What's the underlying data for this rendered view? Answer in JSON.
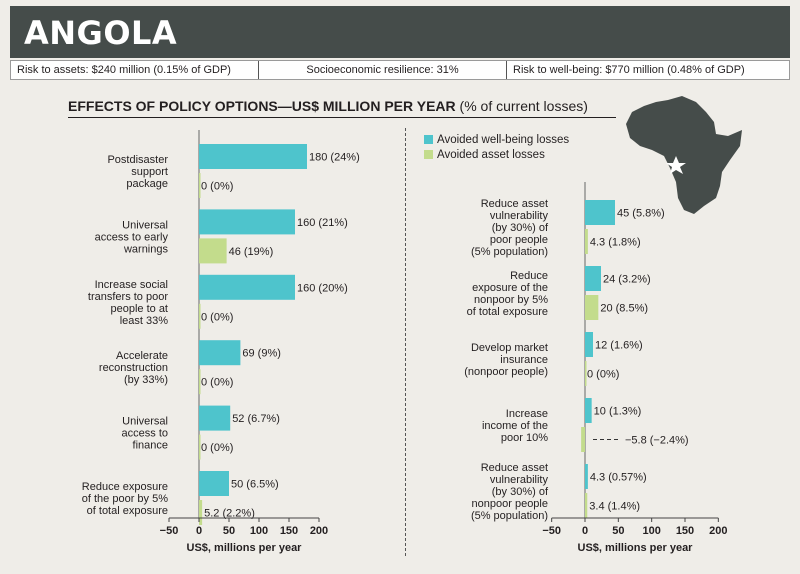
{
  "header": {
    "country": "ANGOLA",
    "risk_to_assets": "Risk to assets: $240 million (0.15% of GDP)",
    "resilience": "Socioeconomic resilience: 31%",
    "risk_to_wellbeing": "Risk to well-being: $770 million (0.48% of GDP)"
  },
  "section": {
    "title_bold": "EFFECTS OF POLICY OPTIONS—US$ MILLION PER YEAR",
    "title_suffix": " (% of current losses)"
  },
  "legend": {
    "wellbeing": "Avoided well-being losses",
    "asset": "Avoided asset losses"
  },
  "colors": {
    "wellbeing": "#4ec4cc",
    "asset": "#c3dc8c",
    "header_bg": "#454c4a",
    "map": "#454c4a"
  },
  "chart_data": [
    {
      "type": "bar",
      "orientation": "horizontal",
      "xlabel": "US$, millions per year",
      "xlim": [
        -50,
        200
      ],
      "xticks": [
        -50,
        0,
        50,
        100,
        150,
        200
      ],
      "categories": [
        [
          "Postdisaster",
          "support",
          "package"
        ],
        [
          "Universal",
          "access to early",
          "warnings"
        ],
        [
          "Increase social",
          "transfers to poor",
          "people to at",
          "least 33%"
        ],
        [
          "Accelerate",
          "reconstruction",
          "(by 33%)"
        ],
        [
          "Universal",
          "access to",
          "finance"
        ],
        [
          "Reduce exposure",
          "of the poor by 5%",
          "of total exposure"
        ]
      ],
      "series": [
        {
          "name": "Avoided well-being losses",
          "values": [
            180,
            160,
            160,
            69,
            52,
            50
          ],
          "labels": [
            "180 (24%)",
            "160 (21%)",
            "160 (20%)",
            "69 (9%)",
            "52 (6.7%)",
            "50 (6.5%)"
          ]
        },
        {
          "name": "Avoided asset losses",
          "values": [
            0,
            46,
            0,
            0,
            0,
            5.2
          ],
          "labels": [
            "0 (0%)",
            "46 (19%)",
            "0 (0%)",
            "0 (0%)",
            "0 (0%)",
            "5.2 (2.2%)"
          ]
        }
      ]
    },
    {
      "type": "bar",
      "orientation": "horizontal",
      "xlabel": "US$, millions per year",
      "xlim": [
        -50,
        200
      ],
      "xticks": [
        -50,
        0,
        50,
        100,
        150,
        200
      ],
      "categories": [
        [
          "Reduce asset",
          "vulnerability",
          "(by 30%) of",
          "poor people",
          "(5% population)"
        ],
        [
          "Reduce",
          "exposure of the",
          "nonpoor by 5%",
          "of total exposure"
        ],
        [
          "Develop market",
          "insurance",
          "(nonpoor people)"
        ],
        [
          "Increase",
          "income of the",
          "poor 10%"
        ],
        [
          "Reduce asset",
          "vulnerability",
          "(by 30%) of",
          "nonpoor people",
          "(5% population)"
        ]
      ],
      "series": [
        {
          "name": "Avoided well-being losses",
          "values": [
            45,
            24,
            12,
            10,
            4.3
          ],
          "labels": [
            "45 (5.8%)",
            "24 (3.2%)",
            "12 (1.6%)",
            "10 (1.3%)",
            "4.3 (0.57%)"
          ]
        },
        {
          "name": "Avoided asset losses",
          "values": [
            4.3,
            20,
            0,
            -5.8,
            3.4
          ],
          "labels": [
            "4.3 (1.8%)",
            "20 (8.5%)",
            "0 (0%)",
            "−5.8 (−2.4%)",
            "3.4 (1.4%)"
          ]
        }
      ]
    }
  ]
}
